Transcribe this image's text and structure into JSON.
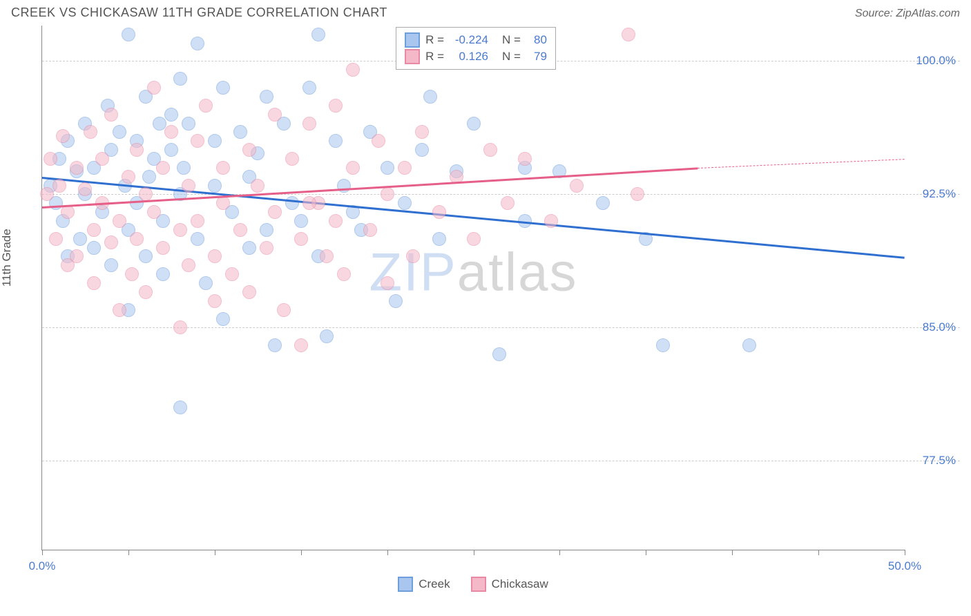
{
  "header": {
    "title": "CREEK VS CHICKASAW 11TH GRADE CORRELATION CHART",
    "source": "Source: ZipAtlas.com"
  },
  "ylabel": "11th Grade",
  "watermark": {
    "part1": "ZIP",
    "part2": "atlas"
  },
  "chart": {
    "type": "scatter",
    "background_color": "#ffffff",
    "grid_color": "#cccccc",
    "axis_color": "#888888",
    "xlim": [
      0,
      50
    ],
    "ylim": [
      72.5,
      102
    ],
    "yticks": [
      {
        "v": 100.0,
        "label": "100.0%"
      },
      {
        "v": 92.5,
        "label": "92.5%"
      },
      {
        "v": 85.0,
        "label": "85.0%"
      },
      {
        "v": 77.5,
        "label": "77.5%"
      }
    ],
    "xticks_major": [
      0,
      50
    ],
    "xticks_minor": [
      5,
      10,
      15,
      20,
      25,
      30,
      35,
      40,
      45
    ],
    "xtick_labels": [
      {
        "v": 0,
        "label": "0.0%"
      },
      {
        "v": 50,
        "label": "50.0%"
      }
    ],
    "marker_radius": 10,
    "marker_opacity": 0.55,
    "series": [
      {
        "name": "Creek",
        "fill": "#a8c6ee",
        "stroke": "#6f9edc",
        "trend_color": "#2f6fd0",
        "R": "-0.224",
        "N": "80",
        "trend": {
          "x1": 0,
          "y1": 93.5,
          "x2": 50,
          "y2": 89.0,
          "dash_from": 50
        },
        "points": [
          [
            0.5,
            93.0
          ],
          [
            0.8,
            92.0
          ],
          [
            1.0,
            94.5
          ],
          [
            1.2,
            91.0
          ],
          [
            1.5,
            95.5
          ],
          [
            1.5,
            89.0
          ],
          [
            2.0,
            93.8
          ],
          [
            2.2,
            90.0
          ],
          [
            2.5,
            96.5
          ],
          [
            2.5,
            92.5
          ],
          [
            3.0,
            89.5
          ],
          [
            3.0,
            94.0
          ],
          [
            3.5,
            91.5
          ],
          [
            3.8,
            97.5
          ],
          [
            4.0,
            88.5
          ],
          [
            4.0,
            95.0
          ],
          [
            4.5,
            96.0
          ],
          [
            4.8,
            93.0
          ],
          [
            5.0,
            101.5
          ],
          [
            5.0,
            90.5
          ],
          [
            5.0,
            86.0
          ],
          [
            5.5,
            95.5
          ],
          [
            5.5,
            92.0
          ],
          [
            6.0,
            98.0
          ],
          [
            6.0,
            89.0
          ],
          [
            6.5,
            94.5
          ],
          [
            6.8,
            96.5
          ],
          [
            7.0,
            91.0
          ],
          [
            7.0,
            88.0
          ],
          [
            7.5,
            95.0
          ],
          [
            8.0,
            99.0
          ],
          [
            8.0,
            92.5
          ],
          [
            8.0,
            80.5
          ],
          [
            8.2,
            94.0
          ],
          [
            8.5,
            96.5
          ],
          [
            9.0,
            101.0
          ],
          [
            9.0,
            90.0
          ],
          [
            9.5,
            87.5
          ],
          [
            10.0,
            95.5
          ],
          [
            10.0,
            93.0
          ],
          [
            10.5,
            98.5
          ],
          [
            10.5,
            85.5
          ],
          [
            11.0,
            91.5
          ],
          [
            11.5,
            96.0
          ],
          [
            12.0,
            89.5
          ],
          [
            12.0,
            93.5
          ],
          [
            12.5,
            94.8
          ],
          [
            13.0,
            98.0
          ],
          [
            13.0,
            90.5
          ],
          [
            13.5,
            84.0
          ],
          [
            14.0,
            96.5
          ],
          [
            14.5,
            92.0
          ],
          [
            15.0,
            91.0
          ],
          [
            15.5,
            98.5
          ],
          [
            16.0,
            101.5
          ],
          [
            16.0,
            89.0
          ],
          [
            16.5,
            84.5
          ],
          [
            17.0,
            95.5
          ],
          [
            17.5,
            93.0
          ],
          [
            18.0,
            91.5
          ],
          [
            18.5,
            90.5
          ],
          [
            19.0,
            96.0
          ],
          [
            20.0,
            94.0
          ],
          [
            20.5,
            86.5
          ],
          [
            21.0,
            92.0
          ],
          [
            22.0,
            95.0
          ],
          [
            22.5,
            98.0
          ],
          [
            23.0,
            90.0
          ],
          [
            24.0,
            93.8
          ],
          [
            25.0,
            96.5
          ],
          [
            26.5,
            83.5
          ],
          [
            28.0,
            94.0
          ],
          [
            28.0,
            91.0
          ],
          [
            30.0,
            93.8
          ],
          [
            32.5,
            92.0
          ],
          [
            35.0,
            90.0
          ],
          [
            36.0,
            84.0
          ],
          [
            41.0,
            84.0
          ],
          [
            7.5,
            97.0
          ],
          [
            6.2,
            93.5
          ]
        ]
      },
      {
        "name": "Chickasaw",
        "fill": "#f4b8c8",
        "stroke": "#e98aa4",
        "trend_color": "#e55f88",
        "R": "0.126",
        "N": "79",
        "trend": {
          "x1": 0,
          "y1": 91.8,
          "x2": 38,
          "y2": 94.0,
          "dash_from": 38,
          "dash_to": 50,
          "dash_y2": 94.5
        },
        "points": [
          [
            0.3,
            92.5
          ],
          [
            0.5,
            94.5
          ],
          [
            0.8,
            90.0
          ],
          [
            1.0,
            93.0
          ],
          [
            1.2,
            95.8
          ],
          [
            1.5,
            91.5
          ],
          [
            1.5,
            88.5
          ],
          [
            2.0,
            94.0
          ],
          [
            2.0,
            89.0
          ],
          [
            2.5,
            92.8
          ],
          [
            2.8,
            96.0
          ],
          [
            3.0,
            90.5
          ],
          [
            3.0,
            87.5
          ],
          [
            3.5,
            94.5
          ],
          [
            3.5,
            92.0
          ],
          [
            4.0,
            89.8
          ],
          [
            4.0,
            97.0
          ],
          [
            4.5,
            91.0
          ],
          [
            4.5,
            86.0
          ],
          [
            5.0,
            93.5
          ],
          [
            5.2,
            88.0
          ],
          [
            5.5,
            95.0
          ],
          [
            5.5,
            90.0
          ],
          [
            6.0,
            92.5
          ],
          [
            6.0,
            87.0
          ],
          [
            6.5,
            98.5
          ],
          [
            6.5,
            91.5
          ],
          [
            7.0,
            94.0
          ],
          [
            7.0,
            89.5
          ],
          [
            7.5,
            96.0
          ],
          [
            8.0,
            90.5
          ],
          [
            8.0,
            85.0
          ],
          [
            8.5,
            93.0
          ],
          [
            8.5,
            88.5
          ],
          [
            9.0,
            95.5
          ],
          [
            9.0,
            91.0
          ],
          [
            9.5,
            97.5
          ],
          [
            10.0,
            89.0
          ],
          [
            10.0,
            86.5
          ],
          [
            10.5,
            94.0
          ],
          [
            10.5,
            92.0
          ],
          [
            11.0,
            88.0
          ],
          [
            11.5,
            90.5
          ],
          [
            12.0,
            95.0
          ],
          [
            12.0,
            87.0
          ],
          [
            12.5,
            93.0
          ],
          [
            13.0,
            89.5
          ],
          [
            13.5,
            97.0
          ],
          [
            13.5,
            91.5
          ],
          [
            14.0,
            86.0
          ],
          [
            14.5,
            94.5
          ],
          [
            15.0,
            90.0
          ],
          [
            15.0,
            84.0
          ],
          [
            15.5,
            96.5
          ],
          [
            16.0,
            92.0
          ],
          [
            16.5,
            89.0
          ],
          [
            17.0,
            97.5
          ],
          [
            17.0,
            91.0
          ],
          [
            17.5,
            88.0
          ],
          [
            18.0,
            94.0
          ],
          [
            18.0,
            99.5
          ],
          [
            19.0,
            90.5
          ],
          [
            19.5,
            95.5
          ],
          [
            20.0,
            92.5
          ],
          [
            20.0,
            87.5
          ],
          [
            21.0,
            94.0
          ],
          [
            21.5,
            89.0
          ],
          [
            22.0,
            96.0
          ],
          [
            23.0,
            91.5
          ],
          [
            24.0,
            93.5
          ],
          [
            25.0,
            90.0
          ],
          [
            26.0,
            95.0
          ],
          [
            27.0,
            92.0
          ],
          [
            28.0,
            94.5
          ],
          [
            29.5,
            91.0
          ],
          [
            31.0,
            93.0
          ],
          [
            34.0,
            101.5
          ],
          [
            34.5,
            92.5
          ],
          [
            15.5,
            92.0
          ]
        ]
      }
    ]
  },
  "legend_bottom": [
    {
      "label": "Creek",
      "fill": "#a8c6ee",
      "stroke": "#6f9edc"
    },
    {
      "label": "Chickasaw",
      "fill": "#f4b8c8",
      "stroke": "#e98aa4"
    }
  ]
}
